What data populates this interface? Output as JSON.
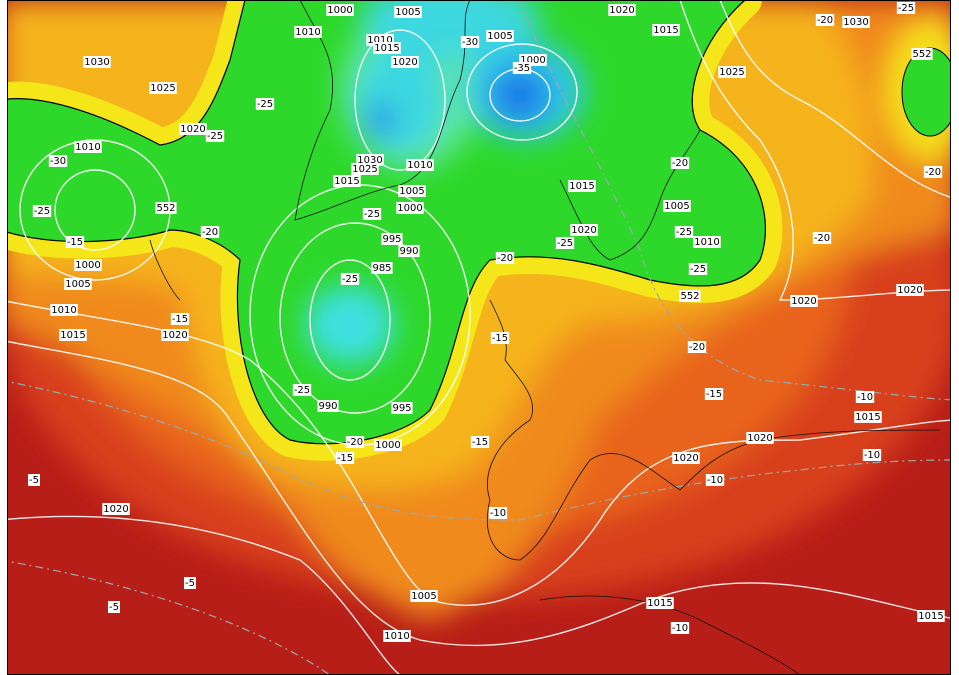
{
  "map": {
    "labels": [
      "1000",
      "1005",
      "1010",
      "1010",
      "1015",
      "-30",
      "1005",
      "1020",
      "1000",
      "-35",
      "1020",
      "1015",
      "-25",
      "-20",
      "1030",
      "552",
      "1025",
      "1030",
      "1025",
      "-25",
      "1020",
      "-25",
      "1010",
      "-30",
      "1030",
      "1025",
      "1010",
      "1015",
      "1005",
      "1015",
      "-20",
      "-25",
      "552",
      "1000",
      "-25",
      "1005",
      "-20",
      "-15",
      "995",
      "990",
      "1020",
      "-25",
      "1010",
      "-25",
      "1000",
      "-20",
      "985",
      "-25",
      "-25",
      "1005",
      "552",
      "1020",
      "1020",
      "-20",
      "-20",
      "1010",
      "1015",
      "-15",
      "1020",
      "-15",
      "-20",
      "-25",
      "990",
      "995",
      "-15",
      "-10",
      "1015",
      "1020",
      "-20",
      "1000",
      "-15",
      "-15",
      "1020",
      "-10",
      "-10",
      "-5",
      "1020",
      "-10",
      "-5",
      "1005",
      "-5",
      "1015",
      "-10",
      "1010",
      "1015"
    ]
  }
}
